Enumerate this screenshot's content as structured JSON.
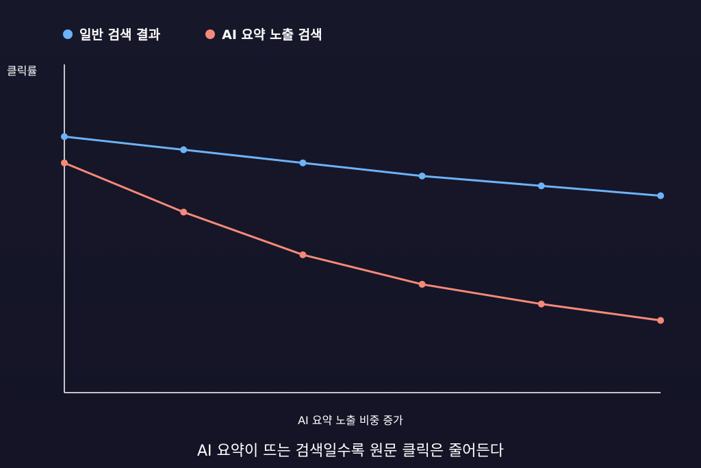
{
  "chart_data": {
    "type": "line",
    "x": [
      1,
      2,
      3,
      4,
      5,
      6
    ],
    "xlabel": "AI 요약 노출 비중 증가",
    "ylabel": "클릭률",
    "ylim": [
      0,
      100
    ],
    "grid": false,
    "legend": "top-left",
    "caption": "AI 요약이 뜨는 검색일수록 원문 클릭은 줄어든다",
    "series": [
      {
        "name": "일반 검색 결과",
        "color": "#6db3f8",
        "values": [
          78,
          74,
          70,
          66,
          63,
          60
        ]
      },
      {
        "name": "AI 요약 노출 검색",
        "color": "#f58a78",
        "values": [
          70,
          55,
          42,
          33,
          27,
          22
        ]
      }
    ]
  }
}
